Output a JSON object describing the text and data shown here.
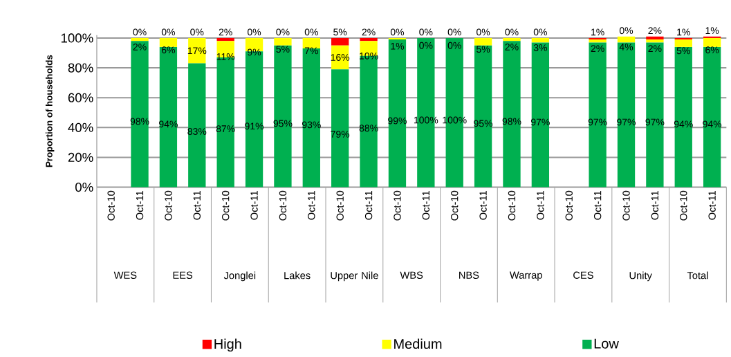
{
  "chart_data": {
    "type": "bar",
    "stacked": true,
    "ylabel": "Proportion of households",
    "categories": [
      "Oct-10",
      "Oct-11",
      "Oct-10",
      "Oct-11",
      "Oct-10",
      "Oct-11",
      "Oct-10",
      "Oct-11",
      "Oct-10",
      "Oct-11",
      "Oct-10",
      "Oct-11",
      "Oct-10",
      "Oct-11",
      "Oct-10",
      "Oct-11",
      "Oct-10",
      "Oct-11",
      "Oct-10",
      "Oct-11",
      "Oct-10",
      "Oct-11"
    ],
    "annotations": [
      "WES",
      "EES",
      "Jonglei",
      "Lakes",
      "Upper Nile",
      "WBS",
      "NBS",
      "Warrap",
      "CES",
      "Unity",
      "Total"
    ],
    "series": [
      {
        "name": "Low",
        "color": "#00b050",
        "values": [
          null,
          98,
          94,
          83,
          87,
          91,
          95,
          93,
          79,
          88,
          99,
          100,
          100,
          95,
          98,
          97,
          null,
          97,
          97,
          97,
          94,
          94
        ],
        "value_labels": [
          null,
          "98%",
          "94%",
          "83%",
          "87%",
          "91%",
          "95%",
          "93%",
          "79%",
          "88%",
          "99%",
          "100%",
          "100%",
          "95%",
          "98%",
          "97%",
          null,
          "97%",
          "97%",
          "97%",
          "94%",
          "94%"
        ]
      },
      {
        "name": "Medium",
        "color": "#ffff00",
        "values": [
          null,
          2,
          6,
          17,
          11,
          9,
          5,
          7,
          16,
          10,
          1,
          0,
          0,
          5,
          2,
          3,
          null,
          2,
          4,
          2,
          5,
          6
        ],
        "value_labels": [
          null,
          "2%",
          "6%",
          "17%",
          "11%",
          "9%",
          "5%",
          "7%",
          "16%",
          "10%",
          "1%",
          "0%",
          "0%",
          "5%",
          "2%",
          "3%",
          null,
          "2%",
          "4%",
          "2%",
          "5%",
          "6%"
        ]
      },
      {
        "name": "High",
        "color": "#ff0000",
        "values": [
          null,
          0,
          0,
          0,
          2,
          0,
          0,
          0,
          5,
          2,
          0,
          0,
          0,
          0,
          0,
          0,
          null,
          1,
          0,
          2,
          1,
          1
        ],
        "value_labels": [
          null,
          "0%",
          "0%",
          "0%",
          "2%",
          "0%",
          "0%",
          "0%",
          "5%",
          "2%",
          "0%",
          "0%",
          "0%",
          "0%",
          "0%",
          "0%",
          null,
          "1%",
          "0%",
          "2%",
          "1%",
          "1%"
        ]
      }
    ],
    "ylim": [
      0,
      102
    ],
    "yticks": [
      {
        "value": 0,
        "label": "0%"
      },
      {
        "value": 20,
        "label": "20%"
      },
      {
        "value": 40,
        "label": "40%"
      },
      {
        "value": 60,
        "label": "60%"
      },
      {
        "value": 80,
        "label": "80%"
      },
      {
        "value": 100,
        "label": "100%"
      }
    ],
    "grid": "y",
    "legend": "bottom"
  }
}
